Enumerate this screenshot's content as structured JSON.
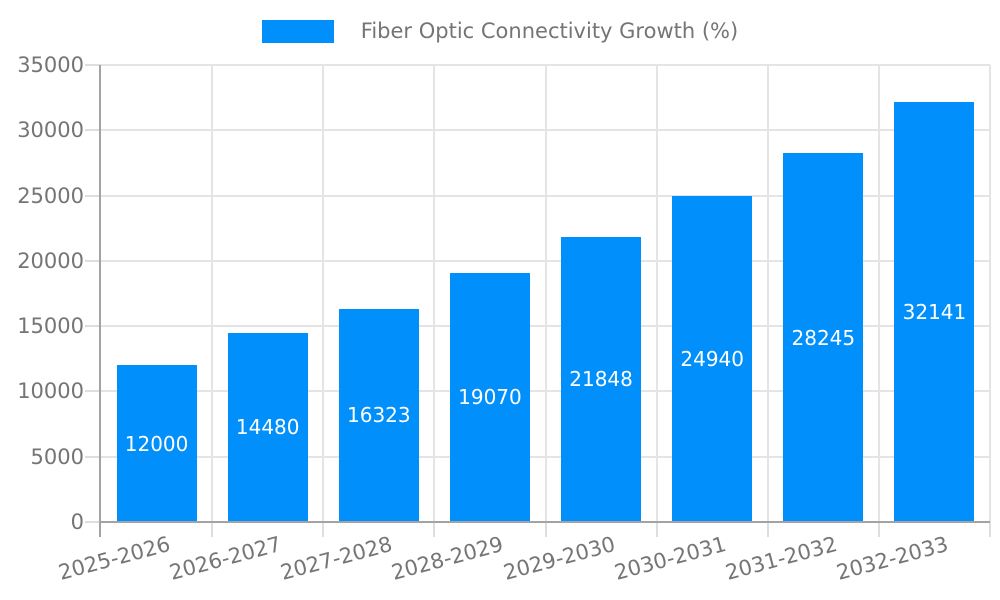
{
  "legend": {
    "label": "Fiber Optic Connectivity Growth (%)"
  },
  "colors": {
    "bar": "#008FFB",
    "bar_label": "#ffffff",
    "axis_line": "#a3a3a3",
    "gridline": "#e4e4e4",
    "tick_text": "#757575",
    "background": "#ffffff"
  },
  "chart_data": {
    "type": "bar",
    "title": "Fiber Optic Connectivity Growth (%)",
    "series": [
      {
        "name": "Fiber Optic Connectivity Growth (%)",
        "values": [
          12000,
          14480,
          16323,
          19070,
          21848,
          24940,
          28245,
          32141
        ]
      }
    ],
    "categories": [
      "2025-2026",
      "2026-2027",
      "2027-2028",
      "2028-2029",
      "2029-2030",
      "2030-2031",
      "2031-2032",
      "2032-2033"
    ],
    "bar_value_labels": [
      "12000",
      "14480",
      "16323",
      "19070",
      "21848",
      "24940",
      "28245",
      "32141"
    ],
    "xlabel": "",
    "ylabel": "",
    "ylim": [
      0,
      35000
    ],
    "yticks": [
      0,
      5000,
      10000,
      15000,
      20000,
      25000,
      30000,
      35000
    ],
    "ytick_labels": [
      "0",
      "5000",
      "10000",
      "15000",
      "20000",
      "25000",
      "30000",
      "35000"
    ],
    "xtick_rotation_deg": 15,
    "grid": true,
    "legend_position": "top",
    "value_label_position": "center-inside"
  }
}
